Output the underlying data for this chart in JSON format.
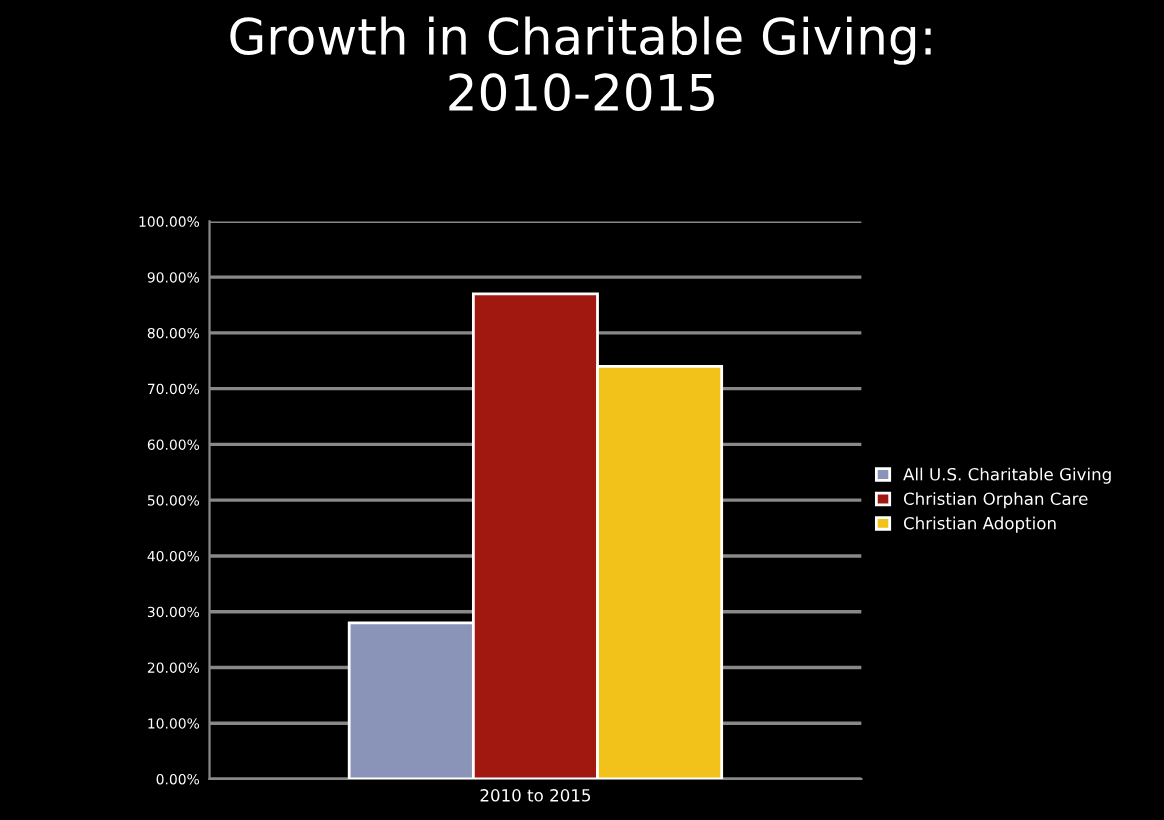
{
  "chart_data": {
    "type": "bar",
    "title": "Growth in Charitable Giving:\n2010-2015",
    "categories": [
      "2010 to 2015"
    ],
    "series": [
      {
        "name": "All U.S. Charitable Giving",
        "color": "#8a93b8",
        "values": [
          28
        ]
      },
      {
        "name": "Christian Orphan Care",
        "color": "#a01810",
        "values": [
          87
        ]
      },
      {
        "name": "Christian Adoption",
        "color": "#f2c21a",
        "values": [
          74
        ]
      }
    ],
    "ylim": [
      0,
      100
    ],
    "yticks": [
      {
        "value": 0,
        "label": "0.00%"
      },
      {
        "value": 10,
        "label": "10.00%"
      },
      {
        "value": 20,
        "label": "20.00%"
      },
      {
        "value": 30,
        "label": "30.00%"
      },
      {
        "value": 40,
        "label": "40.00%"
      },
      {
        "value": 50,
        "label": "50.00%"
      },
      {
        "value": 60,
        "label": "60.00%"
      },
      {
        "value": 70,
        "label": "70.00%"
      },
      {
        "value": 80,
        "label": "80.00%"
      },
      {
        "value": 90,
        "label": "90.00%"
      },
      {
        "value": 100,
        "label": "100.00%"
      }
    ],
    "grid": "y",
    "legend": "right"
  }
}
